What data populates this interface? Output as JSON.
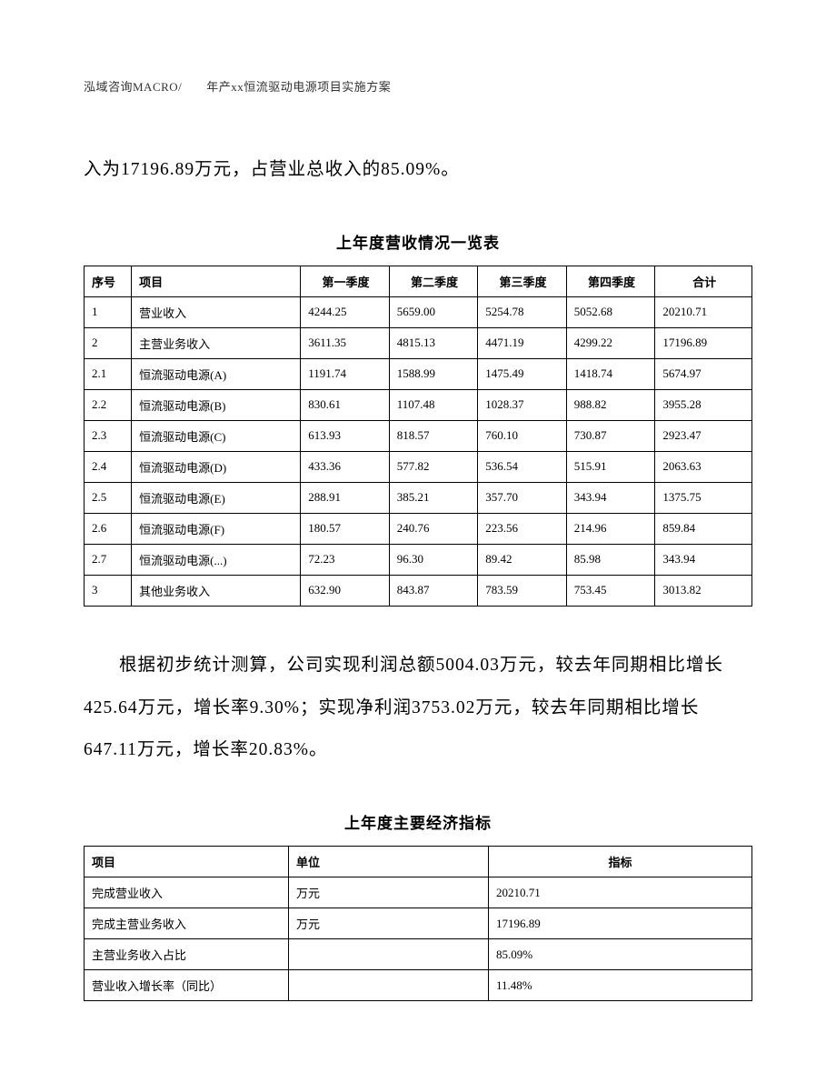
{
  "header": "泓域咨询MACRO/　　年产xx恒流驱动电源项目实施方案",
  "intro_line": "入为17196.89万元，占营业总收入的85.09%。",
  "revenue_table": {
    "title": "上年度营收情况一览表",
    "columns": [
      "序号",
      "项目",
      "第一季度",
      "第二季度",
      "第三季度",
      "第四季度",
      "合计"
    ],
    "rows": [
      [
        "1",
        "营业收入",
        "4244.25",
        "5659.00",
        "5254.78",
        "5052.68",
        "20210.71"
      ],
      [
        "2",
        "主营业务收入",
        "3611.35",
        "4815.13",
        "4471.19",
        "4299.22",
        "17196.89"
      ],
      [
        "2.1",
        "恒流驱动电源(A)",
        "1191.74",
        "1588.99",
        "1475.49",
        "1418.74",
        "5674.97"
      ],
      [
        "2.2",
        "恒流驱动电源(B)",
        "830.61",
        "1107.48",
        "1028.37",
        "988.82",
        "3955.28"
      ],
      [
        "2.3",
        "恒流驱动电源(C)",
        "613.93",
        "818.57",
        "760.10",
        "730.87",
        "2923.47"
      ],
      [
        "2.4",
        "恒流驱动电源(D)",
        "433.36",
        "577.82",
        "536.54",
        "515.91",
        "2063.63"
      ],
      [
        "2.5",
        "恒流驱动电源(E)",
        "288.91",
        "385.21",
        "357.70",
        "343.94",
        "1375.75"
      ],
      [
        "2.6",
        "恒流驱动电源(F)",
        "180.57",
        "240.76",
        "223.56",
        "214.96",
        "859.84"
      ],
      [
        "2.7",
        "恒流驱动电源(...)",
        "72.23",
        "96.30",
        "89.42",
        "85.98",
        "343.94"
      ],
      [
        "3",
        "其他业务收入",
        "632.90",
        "843.87",
        "783.59",
        "753.45",
        "3013.82"
      ]
    ]
  },
  "middle_paragraph": "根据初步统计测算，公司实现利润总额5004.03万元，较去年同期相比增长425.64万元，增长率9.30%；实现净利润3753.02万元，较去年同期相比增长647.11万元，增长率20.83%。",
  "indicators_table": {
    "title": "上年度主要经济指标",
    "columns": [
      "项目",
      "单位",
      "指标"
    ],
    "rows": [
      [
        "完成营业收入",
        "万元",
        "20210.71"
      ],
      [
        "完成主营业务收入",
        "万元",
        "17196.89"
      ],
      [
        "主营业务收入占比",
        "",
        "85.09%"
      ],
      [
        "营业收入增长率（同比）",
        "",
        "11.48%"
      ]
    ]
  }
}
